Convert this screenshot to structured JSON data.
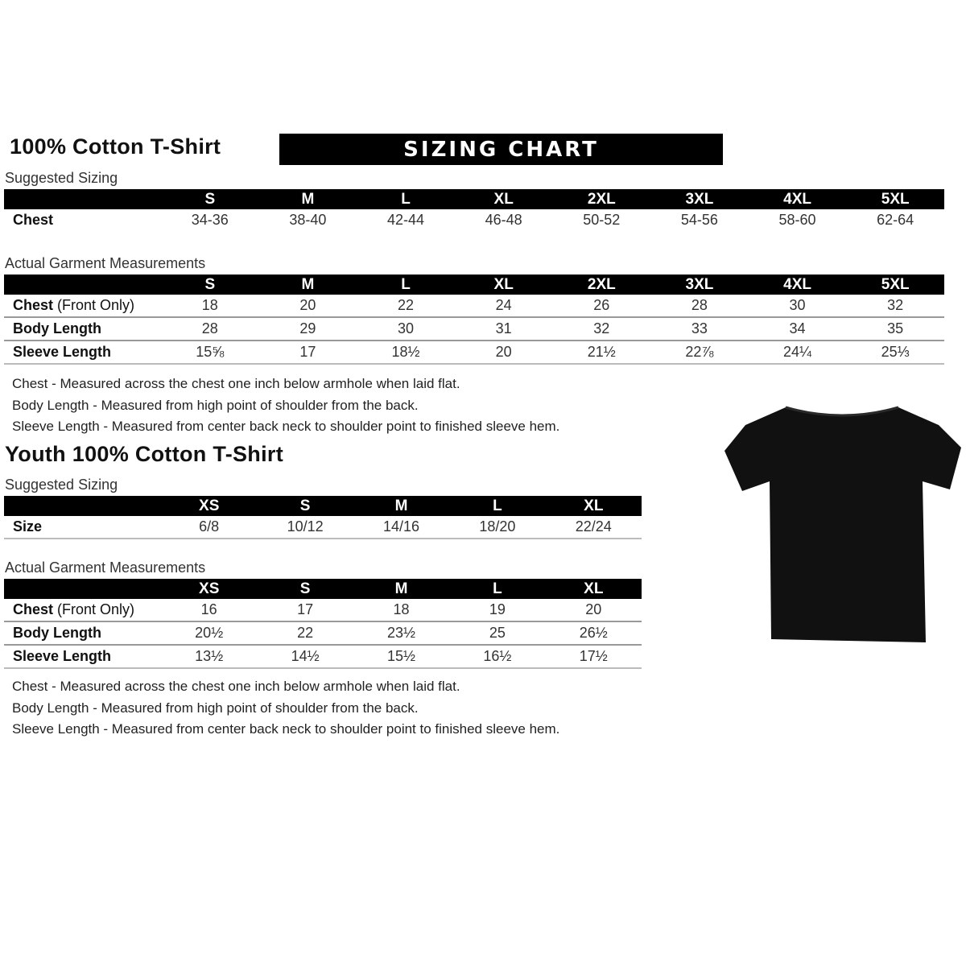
{
  "adult": {
    "title": "100% Cotton T-Shirt",
    "banner": "SIZING CHART",
    "suggested_label": "Suggested Sizing",
    "sizes": [
      "S",
      "M",
      "L",
      "XL",
      "2XL",
      "3XL",
      "4XL",
      "5XL"
    ],
    "suggested_rows": [
      {
        "label": "Chest",
        "values": [
          "34-36",
          "38-40",
          "42-44",
          "46-48",
          "50-52",
          "54-56",
          "58-60",
          "62-64"
        ]
      }
    ],
    "actual_label": "Actual Garment Measurements",
    "actual_rows": [
      {
        "label": "Chest",
        "label_note": " (Front Only)",
        "values": [
          "18",
          "20",
          "22",
          "24",
          "26",
          "28",
          "30",
          "32"
        ]
      },
      {
        "label": "Body Length",
        "label_note": "",
        "values": [
          "28",
          "29",
          "30",
          "31",
          "32",
          "33",
          "34",
          "35"
        ]
      },
      {
        "label": "Sleeve Length",
        "label_note": "",
        "values": [
          "15⅝",
          "17",
          "18½",
          "20",
          "21½",
          "22⅞",
          "24¼",
          "25⅓"
        ]
      }
    ],
    "notes": [
      "Chest - Measured across the chest one inch below armhole when laid flat.",
      "Body Length - Measured from high point of shoulder from the back.",
      "Sleeve Length - Measured from center back neck to shoulder point to finished sleeve hem."
    ]
  },
  "youth": {
    "title": "Youth 100% Cotton T-Shirt",
    "suggested_label": "Suggested Sizing",
    "sizes": [
      "XS",
      "S",
      "M",
      "L",
      "XL"
    ],
    "suggested_rows": [
      {
        "label": "Size",
        "values": [
          "6/8",
          "10/12",
          "14/16",
          "18/20",
          "22/24"
        ]
      }
    ],
    "actual_label": "Actual Garment Measurements",
    "actual_rows": [
      {
        "label": "Chest",
        "label_note": " (Front Only)",
        "values": [
          "16",
          "17",
          "18",
          "19",
          "20"
        ]
      },
      {
        "label": "Body Length",
        "label_note": "",
        "values": [
          "20½",
          "22",
          "23½",
          "25",
          "26½"
        ]
      },
      {
        "label": "Sleeve Length",
        "label_note": "",
        "values": [
          "13½",
          "14½",
          "15½",
          "16½",
          "17½"
        ]
      }
    ],
    "notes": [
      "Chest - Measured across the chest one inch below armhole when laid flat.",
      "Body Length - Measured from high point of shoulder from the back.",
      "Sleeve Length - Measured from center back neck to shoulder point to finished sleeve hem."
    ]
  },
  "image": {
    "icon": "black-tshirt",
    "color": "#111111"
  }
}
